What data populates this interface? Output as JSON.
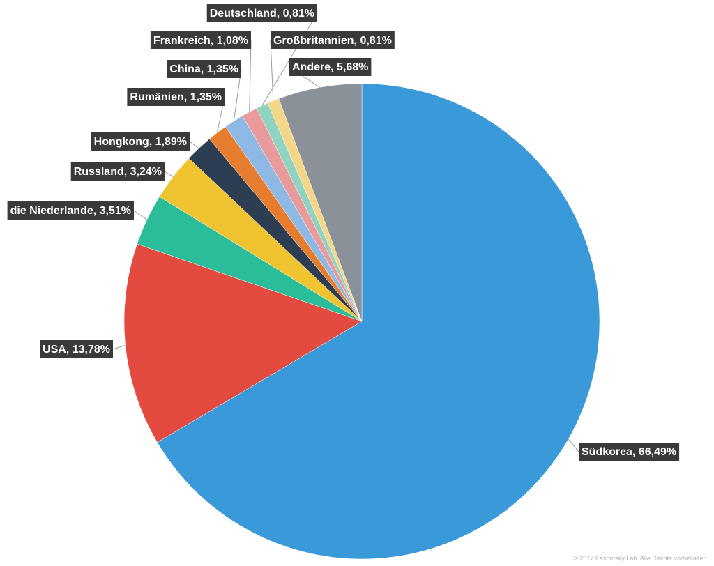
{
  "chart_data": {
    "type": "pie",
    "title": "",
    "slices": [
      {
        "label": "Südkorea, 66,49%",
        "category": "Südkorea",
        "value": 66.49,
        "color": "#3a9ad9"
      },
      {
        "label": "USA, 13,78%",
        "category": "USA",
        "value": 13.78,
        "color": "#e34b41"
      },
      {
        "label": "die Niederlande, 3,51%",
        "category": "die Niederlande",
        "value": 3.51,
        "color": "#2bbc99"
      },
      {
        "label": "Russland, 3,24%",
        "category": "Russland",
        "value": 3.24,
        "color": "#f0c330"
      },
      {
        "label": "Hongkong, 1,89%",
        "category": "Hongkong",
        "value": 1.89,
        "color": "#2d3e52"
      },
      {
        "label": "Rumänien, 1,35%",
        "category": "Rumänien",
        "value": 1.35,
        "color": "#e57c2e"
      },
      {
        "label": "China, 1,35%",
        "category": "China",
        "value": 1.35,
        "color": "#8fb9e5"
      },
      {
        "label": "Frankreich, 1,08%",
        "category": "Frankreich",
        "value": 1.08,
        "color": "#e99a9a"
      },
      {
        "label": "Deutschland, 0,81%",
        "category": "Deutschland",
        "value": 0.81,
        "color": "#8fd3c0"
      },
      {
        "label": "Großbritannien, 0,81%",
        "category": "Großbritannien",
        "value": 0.81,
        "color": "#f4d688"
      },
      {
        "label": "Andere, 5,68%",
        "category": "Andere",
        "value": 5.68,
        "color": "#8a9199"
      }
    ]
  },
  "copyright": "© 2017 Kaspersky Lab. Alle Rechte vorbehalten."
}
